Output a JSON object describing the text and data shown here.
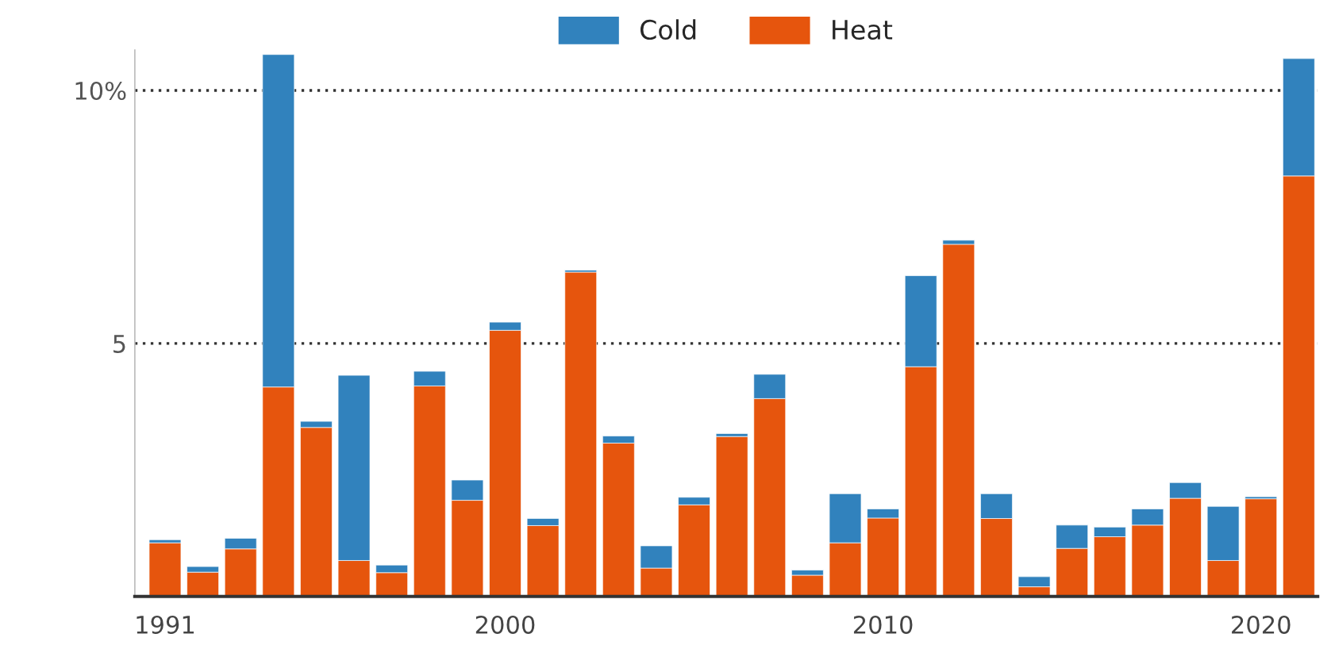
{
  "chart_data": {
    "type": "bar",
    "stacked": true,
    "x": [
      1991,
      1992,
      1993,
      1994,
      1995,
      1996,
      1997,
      1998,
      1999,
      2000,
      2001,
      2002,
      2003,
      2004,
      2005,
      2006,
      2007,
      2008,
      2009,
      2010,
      2011,
      2012,
      2013,
      2014,
      2015,
      2016,
      2017,
      2018,
      2019,
      2020,
      2021
    ],
    "series": [
      {
        "name": "Heat",
        "color": "#e6550d",
        "values": [
          1.06,
          0.48,
          0.94,
          4.14,
          3.34,
          0.71,
          0.47,
          4.16,
          1.9,
          5.26,
          1.4,
          6.41,
          3.03,
          0.56,
          1.81,
          3.16,
          3.91,
          0.42,
          1.06,
          1.55,
          4.54,
          6.96,
          1.54,
          0.19,
          0.95,
          1.18,
          1.41,
          1.94,
          0.71,
          1.93,
          8.31
        ]
      },
      {
        "name": "Cold",
        "color": "#3182bd",
        "values": [
          0.06,
          0.11,
          0.21,
          6.57,
          0.12,
          3.66,
          0.15,
          0.29,
          0.4,
          0.16,
          0.14,
          0.04,
          0.14,
          0.44,
          0.15,
          0.06,
          0.48,
          0.1,
          0.97,
          0.18,
          1.8,
          0.08,
          0.49,
          0.2,
          0.46,
          0.19,
          0.32,
          0.31,
          1.07,
          0.04,
          2.32
        ]
      }
    ],
    "xlim": [
      1990.2,
      2021.5
    ],
    "xticks": [
      1991,
      2000,
      2010,
      2020
    ],
    "ylim": [
      0,
      10.8
    ],
    "yticks": [
      5,
      {
        "value": 10,
        "label": "10%"
      }
    ],
    "grid": "y",
    "legend": "top"
  }
}
